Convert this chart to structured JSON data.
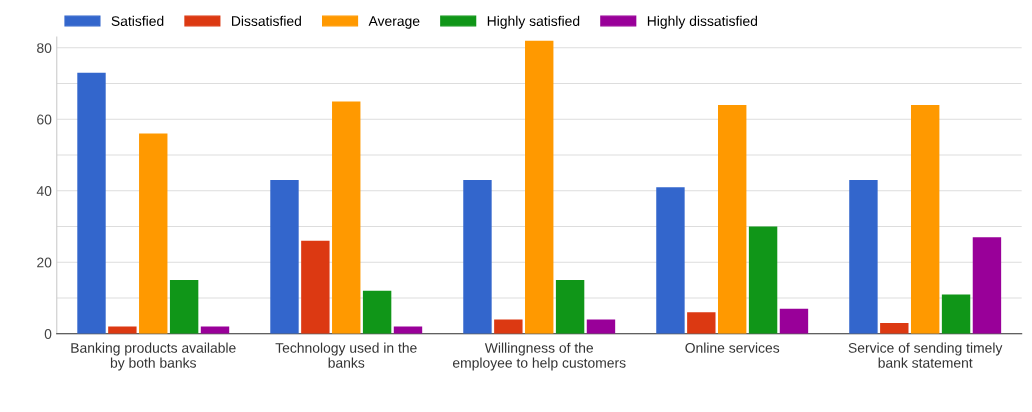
{
  "chart_data": {
    "type": "bar",
    "categories": [
      "Banking products available by both banks",
      "Technology used in the banks",
      "Willingness of the employee to help customers",
      "Online services",
      "Service of sending timely bank statement"
    ],
    "series": [
      {
        "name": "Satisfied",
        "color": "#3366cc",
        "values": [
          73,
          43,
          43,
          41,
          43
        ]
      },
      {
        "name": "Dissatisfied",
        "color": "#dc3912",
        "values": [
          2,
          26,
          4,
          6,
          3
        ]
      },
      {
        "name": "Average",
        "color": "#ff9900",
        "values": [
          56,
          65,
          82,
          64,
          64
        ]
      },
      {
        "name": "Highly satisfied",
        "color": "#109618",
        "values": [
          15,
          12,
          15,
          30,
          11
        ]
      },
      {
        "name": "Highly dissatisfied",
        "color": "#990099",
        "values": [
          2,
          2,
          4,
          7,
          27
        ]
      }
    ],
    "ylim": [
      0,
      83
    ],
    "yticks": [
      0,
      {
        "value": 10,
        "label": null
      },
      20,
      {
        "value": 30,
        "label": null
      },
      40,
      {
        "value": 50,
        "label": null
      },
      60,
      {
        "value": 70,
        "label": null
      },
      80
    ],
    "grid": "y",
    "legend": "top left"
  }
}
